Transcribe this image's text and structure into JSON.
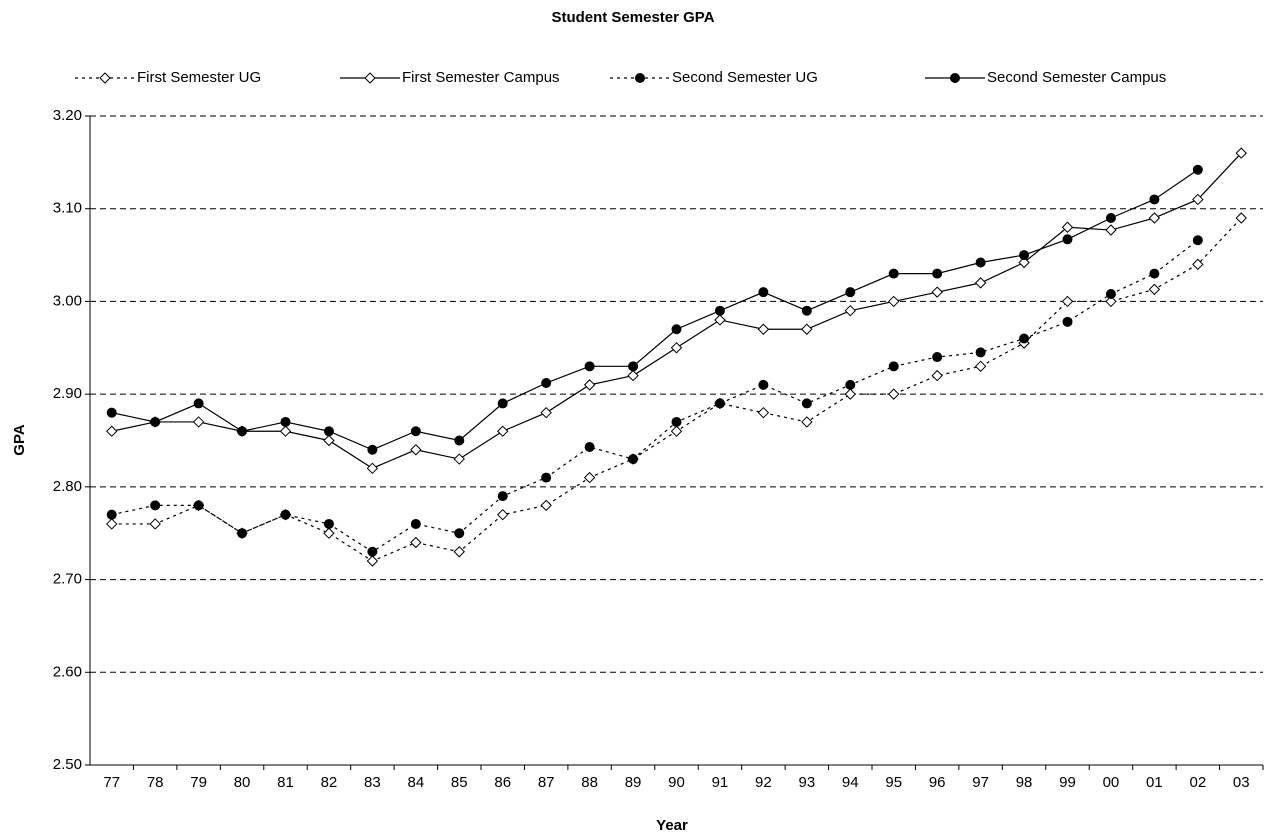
{
  "chart_data": {
    "type": "line",
    "title": "Student Semester GPA",
    "x_label": "Year",
    "y_label": "GPA",
    "categories": [
      "77",
      "78",
      "79",
      "80",
      "81",
      "82",
      "83",
      "84",
      "85",
      "86",
      "87",
      "88",
      "89",
      "90",
      "91",
      "92",
      "93",
      "94",
      "95",
      "96",
      "97",
      "98",
      "99",
      "00",
      "01",
      "02",
      "03"
    ],
    "series": [
      {
        "name": "First Semester UG",
        "color": "#000000",
        "dashed": true,
        "marker": "diamond",
        "values": [
          2.76,
          2.76,
          2.78,
          2.75,
          2.77,
          2.75,
          2.72,
          2.74,
          2.73,
          2.77,
          2.78,
          2.81,
          2.83,
          2.86,
          2.89,
          2.88,
          2.87,
          2.9,
          2.9,
          2.92,
          2.93,
          2.955,
          3.0,
          3.0,
          3.013,
          3.04,
          3.09
        ]
      },
      {
        "name": "First Semester Campus",
        "color": "#000000",
        "dashed": false,
        "marker": "diamond",
        "values": [
          2.86,
          2.87,
          2.87,
          2.86,
          2.86,
          2.85,
          2.82,
          2.84,
          2.83,
          2.86,
          2.88,
          2.91,
          2.92,
          2.95,
          2.98,
          2.97,
          2.97,
          2.99,
          3.0,
          3.01,
          3.02,
          3.042,
          3.08,
          3.077,
          3.09,
          3.11,
          3.16
        ]
      },
      {
        "name": "Second Semester UG",
        "color": "#000000",
        "dashed": true,
        "marker": "circle",
        "values": [
          2.77,
          2.78,
          2.78,
          2.75,
          2.77,
          2.76,
          2.73,
          2.76,
          2.75,
          2.79,
          2.81,
          2.843,
          2.83,
          2.87,
          2.89,
          2.91,
          2.89,
          2.91,
          2.93,
          2.94,
          2.945,
          2.96,
          2.978,
          3.008,
          3.03,
          3.066,
          null
        ]
      },
      {
        "name": "Second Semester Campus",
        "color": "#000000",
        "dashed": false,
        "marker": "circle",
        "values": [
          2.88,
          2.87,
          2.89,
          2.86,
          2.87,
          2.86,
          2.84,
          2.86,
          2.85,
          2.89,
          2.912,
          2.93,
          2.93,
          2.97,
          2.99,
          3.01,
          2.99,
          3.01,
          3.03,
          3.03,
          3.042,
          3.05,
          3.067,
          3.09,
          3.11,
          3.142,
          null
        ]
      }
    ],
    "ylim": [
      2.5,
      3.2
    ],
    "yticks": [
      {
        "value": 2.5,
        "label": "2.50"
      },
      {
        "value": 2.6,
        "label": "2.60"
      },
      {
        "value": 2.7,
        "label": "2.70"
      },
      {
        "value": 2.8,
        "label": "2.80"
      },
      {
        "value": 2.9,
        "label": "2.90"
      },
      {
        "value": 3.0,
        "label": "3.00"
      },
      {
        "value": 3.1,
        "label": "3.10"
      },
      {
        "value": 3.2,
        "label": "3.20"
      }
    ],
    "grid": true,
    "legend": "top"
  }
}
